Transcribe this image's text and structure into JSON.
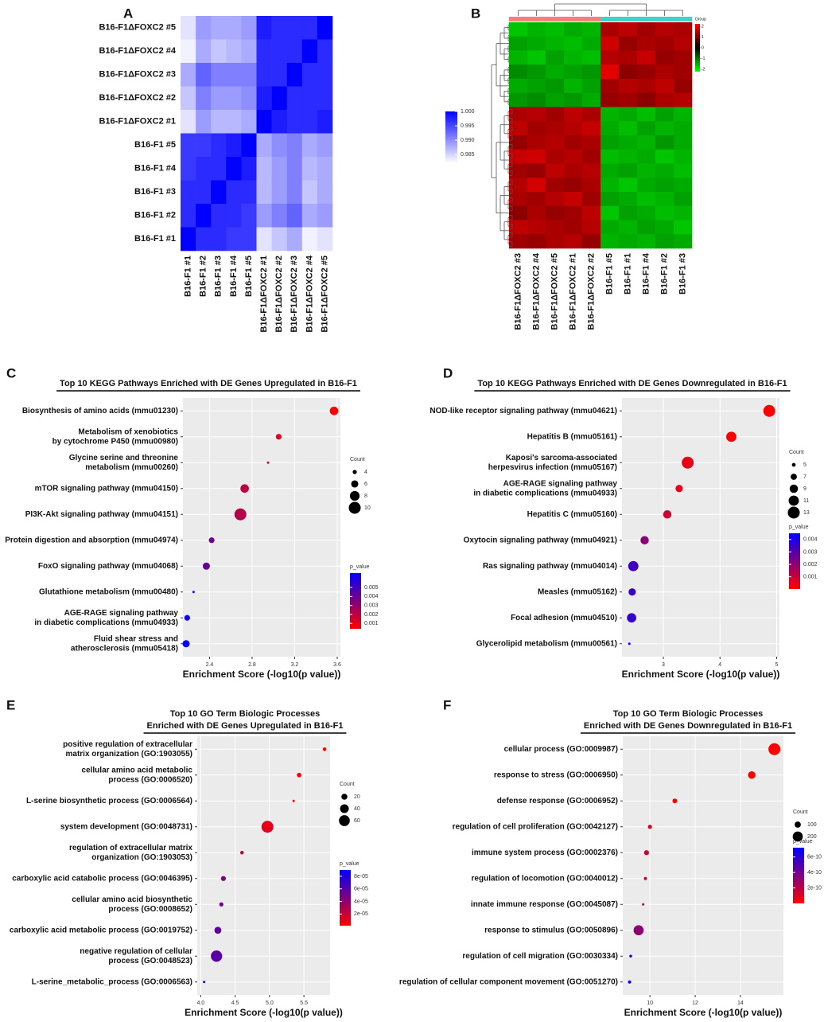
{
  "chart_data": [
    {
      "type": "correlation-heatmap",
      "panel": "A",
      "rows": [
        "B16-F1ΔFOXC2 #5",
        "B16-F1ΔFOXC2 #4",
        "B16-F1ΔFOXC2 #3",
        "B16-F1ΔFOXC2 #2",
        "B16-F1ΔFOXC2 #1",
        "B16-F1 #5",
        "B16-F1 #4",
        "B16-F1 #3",
        "B16-F1 #2",
        "B16-F1 #1"
      ],
      "columns": [
        "B16-F1 #1",
        "B16-F1 #2",
        "B16-F1 #3",
        "B16-F1 #4",
        "B16-F1 #5",
        "B16-F1ΔFOXC2 #1",
        "B16-F1ΔFOXC2 #2",
        "B16-F1ΔFOXC2 #3",
        "B16-F1ΔFOXC2 #4",
        "B16-F1ΔFOXC2 #5"
      ],
      "values": [
        [
          0.984,
          0.989,
          0.988,
          0.988,
          0.989,
          0.998,
          0.997,
          0.997,
          0.997,
          1.0
        ],
        [
          0.983,
          0.988,
          0.986,
          0.987,
          0.988,
          0.997,
          0.997,
          0.997,
          1.0,
          0.997
        ],
        [
          0.988,
          0.993,
          0.991,
          0.991,
          0.991,
          0.997,
          0.997,
          1.0,
          0.997,
          0.997
        ],
        [
          0.986,
          0.991,
          0.989,
          0.989,
          0.99,
          0.998,
          1.0,
          0.997,
          0.997,
          0.997
        ],
        [
          0.984,
          0.989,
          0.987,
          0.987,
          0.988,
          1.0,
          0.998,
          0.997,
          0.997,
          0.998
        ],
        [
          0.996,
          0.996,
          0.997,
          0.998,
          1.0,
          0.988,
          0.99,
          0.991,
          0.988,
          0.989
        ],
        [
          0.996,
          0.997,
          0.997,
          1.0,
          0.998,
          0.987,
          0.989,
          0.991,
          0.987,
          0.988
        ],
        [
          0.997,
          0.997,
          1.0,
          0.997,
          0.997,
          0.987,
          0.989,
          0.991,
          0.986,
          0.988
        ],
        [
          0.997,
          1.0,
          0.997,
          0.997,
          0.996,
          0.989,
          0.991,
          0.993,
          0.988,
          0.989
        ],
        [
          1.0,
          0.997,
          0.997,
          0.996,
          0.996,
          0.984,
          0.986,
          0.988,
          0.983,
          0.984
        ]
      ],
      "zlim": [
        0.982,
        1.0
      ],
      "zticks": [
        {
          "value": 1,
          "label": "1.000"
        },
        0.995,
        {
          "value": 0.99,
          "label": "0.990"
        },
        0.985
      ],
      "colors": [
        "#ffffff",
        "#0000ff"
      ]
    },
    {
      "type": "expression-heatmap",
      "panel": "B",
      "columns": [
        "B16-F1ΔFOXC2 #3",
        "B16-F1ΔFOXC2 #4",
        "B16-F1ΔFOXC2 #5",
        "B16-F1ΔFOXC2 #1",
        "B16-F1ΔFOXC2 #2",
        "B16-F1 #5",
        "B16-F1 #1",
        "B16-F1 #4",
        "B16-F1 #2",
        "B16-F1 #3"
      ],
      "column_colors": [
        "#f08080",
        "#f08080",
        "#f08080",
        "#f08080",
        "#f08080",
        "#40d0d0",
        "#40d0d0",
        "#40d0d0",
        "#40d0d0",
        "#40d0d0"
      ],
      "legend_title": "Group",
      "values": [
        [
          -1.2,
          -1.0,
          -1.1,
          -0.9,
          -1.0,
          0.9,
          1.1,
          0.8,
          1.0,
          0.9
        ],
        [
          -0.8,
          -0.9,
          -1.0,
          -1.1,
          -0.9,
          1.3,
          0.7,
          0.9,
          0.8,
          1.0
        ],
        [
          -1.0,
          -1.2,
          -0.8,
          -1.0,
          -1.1,
          1.0,
          0.9,
          1.2,
          0.7,
          0.8
        ],
        [
          -0.6,
          -0.7,
          -0.9,
          -0.8,
          -0.7,
          1.6,
          0.6,
          0.7,
          0.9,
          0.8
        ],
        [
          -0.9,
          -0.8,
          -0.7,
          -1.0,
          -0.8,
          0.8,
          1.0,
          0.9,
          1.1,
          0.7
        ],
        [
          -0.7,
          -0.6,
          -0.8,
          -0.7,
          -0.9,
          0.7,
          0.8,
          0.6,
          0.9,
          1.0
        ],
        [
          0.9,
          1.0,
          0.8,
          1.1,
          0.9,
          -1.0,
          -0.9,
          -1.1,
          -0.8,
          -1.0
        ],
        [
          1.1,
          0.8,
          0.9,
          1.0,
          1.2,
          -0.9,
          -1.1,
          -0.8,
          -1.0,
          -0.9
        ],
        [
          0.7,
          0.9,
          1.0,
          0.8,
          0.9,
          -0.8,
          -0.9,
          -1.0,
          -0.7,
          -0.9
        ],
        [
          1.2,
          1.3,
          0.9,
          1.0,
          0.8,
          -1.1,
          -1.0,
          -0.9,
          -1.2,
          -1.0
        ],
        [
          0.8,
          0.7,
          1.1,
          0.9,
          1.0,
          -0.9,
          -0.8,
          -1.0,
          -0.9,
          -1.1
        ],
        [
          1.0,
          1.4,
          0.8,
          0.7,
          0.9,
          -1.0,
          -1.2,
          -0.9,
          -0.8,
          -0.9
        ],
        [
          0.9,
          0.8,
          1.0,
          1.2,
          0.8,
          -0.8,
          -0.9,
          -1.1,
          -1.0,
          -0.8
        ],
        [
          0.6,
          0.9,
          0.7,
          0.8,
          1.1,
          -1.2,
          -0.8,
          -0.9,
          -1.1,
          -1.0
        ],
        [
          1.1,
          1.0,
          0.9,
          0.8,
          1.0,
          -0.9,
          -1.0,
          -0.8,
          -0.9,
          -1.2
        ],
        [
          0.8,
          0.7,
          0.9,
          1.0,
          0.7,
          -1.0,
          -0.9,
          -1.0,
          -0.8,
          -0.9
        ]
      ],
      "zlim": [
        -2,
        2
      ],
      "zticks": [
        2,
        1,
        0,
        -1,
        -2
      ],
      "colors": [
        "#00ff00",
        "#000000",
        "#ff0000"
      ]
    },
    {
      "type": "dotplot",
      "panel": "C",
      "title": [
        "Top 10 KEGG Pathways Enriched with DE Genes Upregulated in B16-F1"
      ],
      "categories": [
        [
          "Biosynthesis of amino acids (mmu01230)"
        ],
        [
          "Metabolism of xenobiotics",
          "by cytochrome P450 (mmu00980)"
        ],
        [
          "Glycine serine and threonine",
          "metabolism (mmu00260)"
        ],
        [
          "mTOR signaling pathway (mmu04150)"
        ],
        [
          "PI3K-Akt signaling pathway (mmu04151)"
        ],
        [
          "Protein digestion and absorption (mmu04974)"
        ],
        [
          "FoxO signaling pathway (mmu04068)"
        ],
        [
          "Glutathione metabolism (mmu00480)"
        ],
        [
          "AGE-RAGE signaling pathway",
          "in diabetic complications (mmu04933)"
        ],
        [
          "Fluid shear stress and",
          "atherosclerosis (mmu05418)"
        ]
      ],
      "values": [
        3.57,
        3.05,
        2.95,
        2.73,
        2.69,
        2.42,
        2.37,
        2.25,
        2.19,
        2.18
      ],
      "counts": [
        7,
        5,
        3,
        7,
        10,
        5,
        6,
        3,
        5,
        6
      ],
      "p_values": [
        0.0005,
        0.001,
        0.001,
        0.002,
        0.0022,
        0.0038,
        0.0042,
        0.0055,
        0.0062,
        0.0065
      ],
      "xlabel": "Enrichment Score (-log10(p value))",
      "xlim": [
        2.15,
        3.63
      ],
      "xticks": [
        2.4,
        2.8,
        3.2,
        3.6
      ],
      "size_title": "Count",
      "sizelim": [
        3,
        10
      ],
      "size_ticks": [
        4,
        6,
        8,
        10
      ],
      "color_title": "p_value",
      "colorlim": [
        0.0004,
        0.0066
      ],
      "color_ticks": [
        0.001,
        0.002,
        0.003,
        0.004,
        0.005
      ],
      "colors": [
        "#ff0000",
        "#0000ff"
      ]
    },
    {
      "type": "dotplot",
      "panel": "D",
      "title": [
        "Top 10 KEGG Pathways Enriched with DE Genes Downregulated in B16-F1"
      ],
      "categories": [
        [
          "NOD-like receptor signaling pathway (mmu04621)"
        ],
        [
          "Hepatitis B (mmu05161)"
        ],
        [
          "Kaposi's sarcoma-associated",
          "herpesvirus infection (mmu05167)"
        ],
        [
          "AGE-RAGE signaling pathway",
          "in diabetic complications (mmu04933)"
        ],
        [
          "Hepatitis C (mmu05160)"
        ],
        [
          "Oxytocin signaling pathway (mmu04921)"
        ],
        [
          "Ras signaling pathway (mmu04014)"
        ],
        [
          "Measles (mmu05162)"
        ],
        [
          "Focal adhesion (mmu04510)"
        ],
        [
          "Glycerolipid metabolism (mmu00561)"
        ]
      ],
      "values": [
        4.87,
        4.2,
        3.43,
        3.28,
        3.07,
        2.67,
        2.47,
        2.45,
        2.44,
        2.4
      ],
      "counts": [
        13,
        11,
        13,
        8,
        9,
        9,
        11,
        8,
        10,
        4
      ],
      "p_values": [
        2e-05,
        0.0001,
        0.0004,
        0.0005,
        0.0009,
        0.0021,
        0.0034,
        0.0035,
        0.0036,
        0.0045
      ],
      "xlabel": "Enrichment Score (-log10(p value))",
      "xlim": [
        2.27,
        5.05
      ],
      "xticks": [
        3,
        4,
        5
      ],
      "size_title": "Count",
      "sizelim": [
        4,
        13
      ],
      "size_ticks": [
        5,
        7,
        9,
        11,
        13
      ],
      "color_title": "p_value",
      "colorlim": [
        2e-05,
        0.0045
      ],
      "color_ticks": [
        0.001,
        0.002,
        0.003,
        0.004
      ],
      "colors": [
        "#ff0000",
        "#0000ff"
      ]
    },
    {
      "type": "dotplot",
      "panel": "E",
      "title": [
        "Top 10 GO Term Biologic Processes",
        "Enriched with DE Genes Upregulated in B16-F1"
      ],
      "categories": [
        [
          "positive regulation of extracellular",
          "matrix organization (GO:1903055)"
        ],
        [
          "cellular amino acid metabolic",
          "process (GO:0006520)"
        ],
        [
          "L-serine biosynthetic process (GO:0006564)"
        ],
        [
          "system development (GO:0048731)"
        ],
        [
          "regulation of extracellular matrix",
          "organization (GO:1903053)"
        ],
        [
          "carboxylic acid catabolic process (GO:0046395)"
        ],
        [
          "cellular amino acid biosynthetic",
          "process (GO:0008652)"
        ],
        [
          "carboxylic acid metabolic process (GO:0019752)"
        ],
        [
          "negative regulation of cellular",
          "process (GO:0048523)"
        ],
        [
          "L-serine_metabolic_process (GO:0006563)"
        ]
      ],
      "values": [
        5.8,
        5.43,
        5.35,
        4.97,
        4.6,
        4.33,
        4.3,
        4.25,
        4.23,
        4.05
      ],
      "counts": [
        8,
        12,
        4,
        72,
        8,
        14,
        10,
        26,
        65,
        4
      ],
      "p_values": [
        1.5e-06,
        3.5e-06,
        4.5e-06,
        1.1e-05,
        2.5e-05,
        4.7e-05,
        5e-05,
        5.6e-05,
        5.9e-05,
        8.9e-05
      ],
      "xlabel": "Enrichment Score (-log10(p value))",
      "xlim": [
        3.95,
        5.88
      ],
      "xticks": [
        {
          "value": 4,
          "label": "4.0"
        },
        4.5,
        {
          "value": 5,
          "label": "5.0"
        },
        5.5
      ],
      "size_title": "Count",
      "sizelim": [
        4,
        72
      ],
      "size_ticks": [
        20,
        40,
        60
      ],
      "color_title": "p_value",
      "colorlim": [
        1.5e-06,
        9e-05
      ],
      "color_ticks": [
        {
          "value": 2e-05,
          "label": "2e-05"
        },
        {
          "value": 4e-05,
          "label": "4e-05"
        },
        {
          "value": 6e-05,
          "label": "6e-05"
        },
        {
          "value": 8e-05,
          "label": "8e-05"
        }
      ],
      "colors": [
        "#ff0000",
        "#0000ff"
      ]
    },
    {
      "type": "dotplot",
      "panel": "F",
      "title": [
        "Top 10 GO Term Biologic Processes",
        "Enriched with DE Genes Downregulated in B16-F1"
      ],
      "categories": [
        [
          "cellular process (GO:0009987)"
        ],
        [
          "response to stress (GO:0006950)"
        ],
        [
          "defense response (GO:0006952)"
        ],
        [
          "regulation of cell proliferation (GO:0042127)"
        ],
        [
          "immune system process (GO:0002376)"
        ],
        [
          "regulation of locomotion (GO:0040012)"
        ],
        [
          "innate immune response (GO:0045087)"
        ],
        [
          "response to stimulus (GO:0050896)"
        ],
        [
          "regulation of cell migration (GO:0030334)"
        ],
        [
          "regulation of cellular component movement (GO:0051270)"
        ]
      ],
      "values": [
        15.5,
        14.5,
        11.1,
        10.0,
        9.85,
        9.8,
        9.7,
        9.5,
        9.15,
        9.1
      ],
      "counts": [
        260,
        130,
        70,
        60,
        75,
        45,
        35,
        200,
        40,
        45
      ],
      "p_values": [
        1e-16,
        3e-15,
        8e-12,
        1e-10,
        1.4e-10,
        1.6e-10,
        2e-10,
        3.2e-10,
        7e-10,
        7.1e-10
      ],
      "xlabel": "Enrichment Score (-log10(p value))",
      "xlim": [
        8.8,
        15.9
      ],
      "xticks": [
        10,
        12,
        14
      ],
      "size_title": "Count",
      "sizelim": [
        35,
        260
      ],
      "size_ticks": [
        100,
        200
      ],
      "color_title": "p_value",
      "colorlim": [
        1e-16,
        7.2e-10
      ],
      "color_ticks": [
        {
          "value": 2e-10,
          "label": "2e-10"
        },
        {
          "value": 4e-10,
          "label": "4e-10"
        },
        {
          "value": 6e-10,
          "label": "6e-10"
        }
      ],
      "colors": [
        "#ff0000",
        "#0000ff"
      ]
    }
  ]
}
